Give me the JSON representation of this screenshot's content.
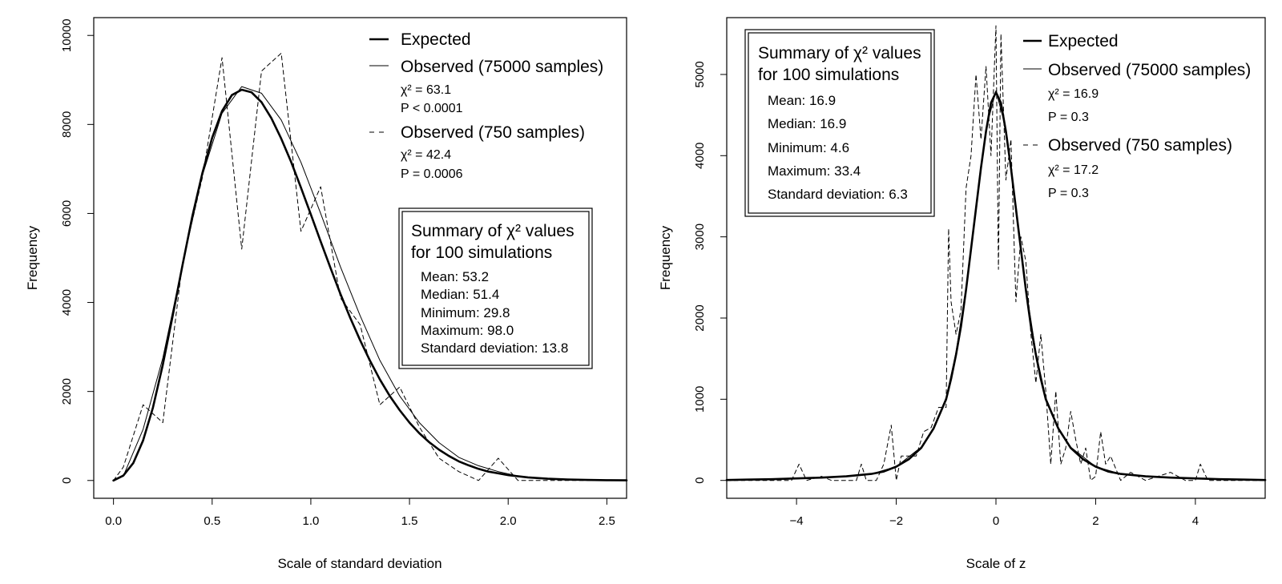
{
  "chart_data": [
    {
      "type": "line",
      "xlabel": "Scale of standard deviation",
      "ylabel": "Frequency",
      "xlim": [
        -0.1,
        2.6
      ],
      "ylim": [
        -400,
        10400
      ],
      "x_ticks": [
        "0.0",
        "0.5",
        "1.0",
        "1.5",
        "2.0",
        "2.5"
      ],
      "y_ticks": [
        "0",
        "2000",
        "4000",
        "6000",
        "8000",
        "10000"
      ],
      "legend": {
        "placement": "top-right",
        "entries": [
          {
            "label": "Expected",
            "stats": []
          },
          {
            "label": "Observed (75000 samples)",
            "stats": [
              "χ² = 63.1",
              "P < 0.0001"
            ]
          },
          {
            "label": "Observed (750 samples)",
            "stats": [
              "χ² = 42.4",
              "P = 0.0006"
            ]
          }
        ]
      },
      "summary": {
        "title_lines": [
          "Summary of χ² values",
          "for 100 simulations"
        ],
        "lines": [
          "Mean: 53.2",
          "Median: 51.4",
          "Minimum: 29.8",
          "Maximum: 98.0",
          "Standard deviation: 13.8"
        ],
        "placement": "middle-right"
      },
      "series": [
        {
          "name": "Expected",
          "style": "thick-solid",
          "x": [
            0,
            0.05,
            0.1,
            0.15,
            0.2,
            0.25,
            0.3,
            0.35,
            0.4,
            0.45,
            0.5,
            0.55,
            0.6,
            0.65,
            0.7,
            0.75,
            0.8,
            0.85,
            0.9,
            0.95,
            1.0,
            1.05,
            1.1,
            1.15,
            1.2,
            1.25,
            1.3,
            1.35,
            1.4,
            1.45,
            1.5,
            1.55,
            1.6,
            1.65,
            1.7,
            1.75,
            1.8,
            1.85,
            1.9,
            1.95,
            2.0,
            2.1,
            2.2,
            2.3,
            2.4,
            2.5,
            2.6
          ],
          "y": [
            0,
            110,
            390,
            900,
            1640,
            2600,
            3700,
            4840,
            5940,
            6900,
            7700,
            8300,
            8660,
            8780,
            8720,
            8500,
            8140,
            7680,
            7160,
            6580,
            5980,
            5370,
            4770,
            4190,
            3650,
            3150,
            2690,
            2270,
            1900,
            1580,
            1300,
            1060,
            860,
            690,
            550,
            430,
            340,
            260,
            200,
            160,
            120,
            70,
            40,
            22,
            12,
            6,
            3
          ]
        },
        {
          "name": "Observed (75000 samples)",
          "style": "thin-solid",
          "x": [
            0.0,
            0.05,
            0.15,
            0.25,
            0.35,
            0.45,
            0.55,
            0.65,
            0.75,
            0.85,
            0.95,
            1.05,
            1.15,
            1.25,
            1.35,
            1.45,
            1.55,
            1.65,
            1.75,
            1.85,
            1.95,
            2.05,
            2.15,
            2.25,
            2.35,
            2.45,
            2.6
          ],
          "y": [
            0,
            100,
            1150,
            2750,
            4850,
            6850,
            8250,
            8850,
            8700,
            8100,
            7150,
            6000,
            4800,
            3700,
            2700,
            1900,
            1300,
            850,
            520,
            330,
            200,
            100,
            50,
            25,
            10,
            5,
            0
          ]
        },
        {
          "name": "Observed (750 samples)",
          "style": "dashed",
          "x": [
            0.0,
            0.05,
            0.15,
            0.25,
            0.35,
            0.45,
            0.55,
            0.65,
            0.75,
            0.85,
            0.95,
            1.05,
            1.15,
            1.25,
            1.35,
            1.45,
            1.55,
            1.65,
            1.75,
            1.85,
            1.95,
            2.05,
            2.15,
            2.25,
            2.35,
            2.45,
            2.6
          ],
          "y": [
            0,
            300,
            1700,
            1300,
            4900,
            6800,
            9500,
            5200,
            9200,
            9600,
            5600,
            6600,
            4100,
            3500,
            1700,
            2100,
            1200,
            500,
            200,
            0,
            500,
            0,
            0,
            0,
            0,
            0,
            0
          ]
        }
      ]
    },
    {
      "type": "line",
      "xlabel": "Scale of z",
      "ylabel": "Frequency",
      "xlim": [
        -5.4,
        5.4
      ],
      "ylim": [
        -220,
        5700
      ],
      "x_ticks": [
        "−4",
        "−2",
        "0",
        "2",
        "4"
      ],
      "y_ticks": [
        "0",
        "1000",
        "2000",
        "3000",
        "4000",
        "5000"
      ],
      "legend": {
        "placement": "top-right",
        "entries": [
          {
            "label": "Expected",
            "stats": []
          },
          {
            "label": "Observed (75000 samples)",
            "stats": [
              "χ² = 16.9",
              "P = 0.3"
            ]
          },
          {
            "label": "Observed (750 samples)",
            "stats": [
              "χ² = 17.2",
              "P = 0.3"
            ]
          }
        ]
      },
      "summary": {
        "title_lines": [
          "Summary of χ² values",
          "for 100 simulations"
        ],
        "lines": [
          "Mean: 16.9",
          "Median: 16.9",
          "Minimum: 4.6",
          "Maximum: 33.4",
          "Standard deviation: 6.3"
        ],
        "placement": "top-left"
      },
      "series": [
        {
          "name": "Expected",
          "style": "thick-solid",
          "x": [
            -5.4,
            -5,
            -4.5,
            -4,
            -3.5,
            -3,
            -2.5,
            -2.25,
            -2,
            -1.75,
            -1.5,
            -1.25,
            -1,
            -0.9,
            -0.8,
            -0.7,
            -0.6,
            -0.5,
            -0.4,
            -0.3,
            -0.2,
            -0.1,
            0,
            0.1,
            0.2,
            0.3,
            0.4,
            0.5,
            0.6,
            0.7,
            0.8,
            0.9,
            1,
            1.25,
            1.5,
            1.75,
            2,
            2.25,
            2.5,
            3,
            3.5,
            4,
            4.5,
            5,
            5.4
          ],
          "y": [
            5,
            10,
            15,
            25,
            35,
            50,
            80,
            110,
            170,
            260,
            400,
            640,
            1000,
            1250,
            1550,
            1900,
            2350,
            2850,
            3350,
            3850,
            4300,
            4650,
            4780,
            4650,
            4300,
            3850,
            3350,
            2850,
            2350,
            1900,
            1550,
            1250,
            1000,
            640,
            400,
            260,
            170,
            110,
            80,
            50,
            35,
            25,
            15,
            10,
            5
          ]
        },
        {
          "name": "Observed (75000 samples)",
          "style": "thin-solid",
          "x": [
            -5.4,
            -4,
            -3,
            -2.5,
            -2,
            -1.5,
            -1.25,
            -1,
            -0.8,
            -0.6,
            -0.4,
            -0.2,
            0,
            0.2,
            0.4,
            0.6,
            0.8,
            1,
            1.25,
            1.5,
            2,
            2.5,
            3,
            4,
            5.4
          ],
          "y": [
            5,
            20,
            50,
            80,
            170,
            410,
            650,
            1020,
            1580,
            2380,
            3380,
            4330,
            4800,
            4330,
            3380,
            2380,
            1580,
            1020,
            650,
            410,
            170,
            80,
            50,
            20,
            5
          ]
        },
        {
          "name": "Observed (750 samples)",
          "style": "dashed",
          "x": [
            -5.4,
            -4.5,
            -4.1,
            -3.95,
            -3.8,
            -3.5,
            -3.3,
            -3.0,
            -2.8,
            -2.7,
            -2.6,
            -2.4,
            -2.25,
            -2.1,
            -2.0,
            -1.9,
            -1.75,
            -1.6,
            -1.45,
            -1.3,
            -1.15,
            -1.0,
            -0.95,
            -0.9,
            -0.8,
            -0.7,
            -0.6,
            -0.5,
            -0.4,
            -0.3,
            -0.2,
            -0.1,
            0.0,
            0.05,
            0.1,
            0.2,
            0.3,
            0.4,
            0.5,
            0.6,
            0.7,
            0.8,
            0.9,
            1.0,
            1.1,
            1.2,
            1.3,
            1.4,
            1.5,
            1.6,
            1.7,
            1.8,
            1.9,
            2.0,
            2.1,
            2.2,
            2.3,
            2.5,
            2.7,
            3.0,
            3.5,
            3.8,
            4.0,
            4.1,
            4.25,
            4.6,
            5.0,
            5.4
          ],
          "y": [
            0,
            0,
            0,
            200,
            0,
            50,
            0,
            0,
            0,
            200,
            0,
            0,
            200,
            680,
            0,
            300,
            300,
            300,
            600,
            650,
            900,
            900,
            3100,
            2200,
            1800,
            2100,
            3600,
            4000,
            5000,
            4200,
            5100,
            4000,
            5600,
            2600,
            5500,
            3700,
            4200,
            2200,
            3000,
            2700,
            1800,
            1200,
            1800,
            1100,
            200,
            1100,
            200,
            400,
            850,
            500,
            200,
            400,
            0,
            50,
            600,
            200,
            300,
            0,
            100,
            0,
            100,
            0,
            0,
            200,
            0,
            0,
            0,
            0
          ]
        }
      ]
    }
  ]
}
